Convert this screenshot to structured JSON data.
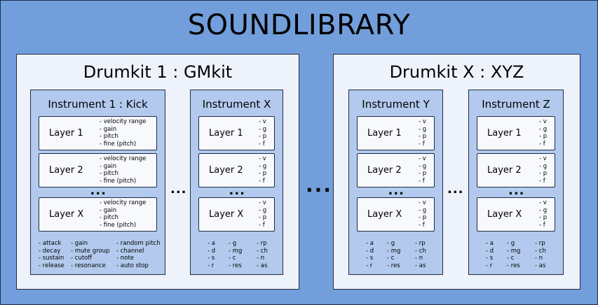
{
  "title": "SOUNDLIBRARY",
  "ellipsis": "...",
  "drumkits": [
    {
      "title": "Drumkit 1 : GMkit",
      "instruments": [
        {
          "title": "Instrument 1 : Kick",
          "layers": [
            {
              "label": "Layer 1",
              "params": [
                "- velocity range",
                "- gain",
                "- pitch",
                "- fine (pitch)"
              ]
            },
            {
              "label": "Layer 2",
              "params": [
                "- velocity range",
                "- gain",
                "- pitch",
                "- fine (pitch)"
              ]
            },
            {
              "label": "Layer X",
              "params": [
                "- velocity range",
                "- gain",
                "- pitch",
                "- fine (pitch)"
              ]
            }
          ],
          "properties": [
            [
              "- attack",
              "- decay",
              "- sustain",
              "- release"
            ],
            [
              "- gain",
              "- mute group",
              "- cutoff",
              "- resonance"
            ],
            [
              "- random pitch",
              "- channel",
              "- note",
              "- auto stop"
            ]
          ]
        },
        {
          "title": "Instrument X",
          "layers": [
            {
              "label": "Layer 1",
              "params": [
                "- v",
                "- g",
                "- p",
                "- f"
              ]
            },
            {
              "label": "Layer 2",
              "params": [
                "- v",
                "- g",
                "- p",
                "- f"
              ]
            },
            {
              "label": "Layer X",
              "params": [
                "- v",
                "- g",
                "- p",
                "- f"
              ]
            }
          ],
          "properties": [
            [
              "- a",
              "- d",
              "- s",
              "- r"
            ],
            [
              "- g",
              "- mg",
              "- c",
              "- res"
            ],
            [
              "- rp",
              "- ch",
              "- n",
              "- as"
            ]
          ]
        }
      ]
    },
    {
      "title": "Drumkit X : XYZ",
      "instruments": [
        {
          "title": "Instrument Y",
          "layers": [
            {
              "label": "Layer 1",
              "params": [
                "- v",
                "- g",
                "- p",
                "- f"
              ]
            },
            {
              "label": "Layer 2",
              "params": [
                "- v",
                "- g",
                "- p",
                "- f"
              ]
            },
            {
              "label": "Layer X",
              "params": [
                "- v",
                "- g",
                "- p",
                "- f"
              ]
            }
          ],
          "properties": [
            [
              "- a",
              "- d",
              "- s",
              "- r"
            ],
            [
              "- g",
              "- mg",
              "- c",
              "- res"
            ],
            [
              "- rp",
              "- ch",
              "- n",
              "- as"
            ]
          ]
        },
        {
          "title": "Instrument Z",
          "layers": [
            {
              "label": "Layer 1",
              "params": [
                "- v",
                "- g",
                "- p",
                "- f"
              ]
            },
            {
              "label": "Layer 2",
              "params": [
                "- v",
                "- g",
                "- p",
                "- f"
              ]
            },
            {
              "label": "Layer X",
              "params": [
                "- v",
                "- g",
                "- p",
                "- f"
              ]
            }
          ],
          "properties": [
            [
              "- a",
              "- d",
              "- s",
              "- r"
            ],
            [
              "- g",
              "- mg",
              "- c",
              "- res"
            ],
            [
              "- rp",
              "- ch",
              "- n",
              "- as"
            ]
          ]
        }
      ]
    }
  ]
}
